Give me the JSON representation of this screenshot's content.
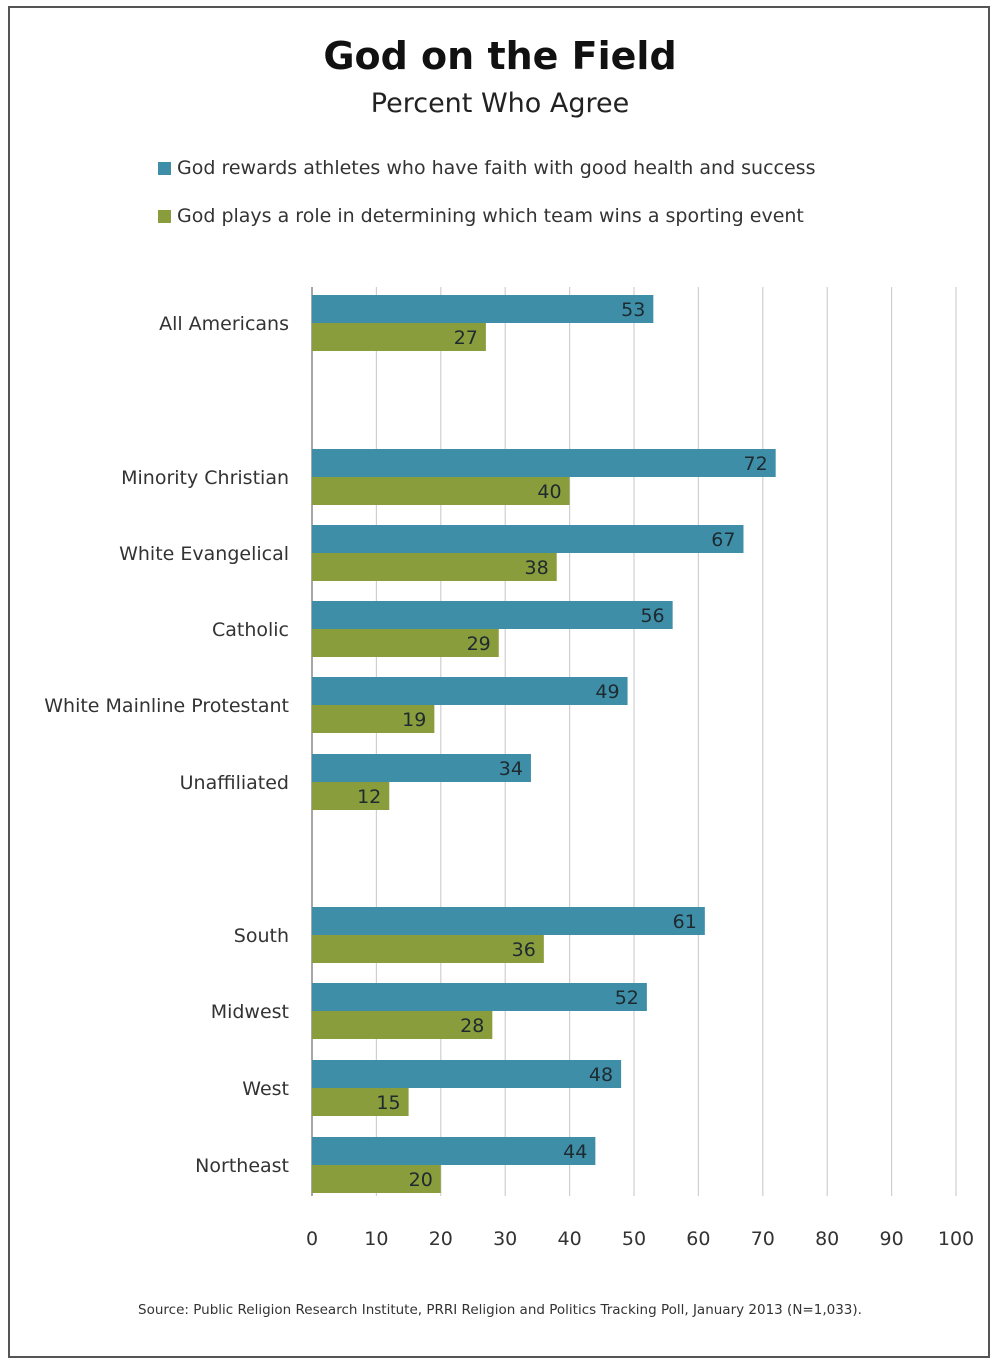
{
  "chart_data": {
    "type": "bar",
    "orientation": "horizontal",
    "title": "God on the Field",
    "subtitle": "Percent Who Agree",
    "categories": [
      "All Americans",
      "Minority Christian",
      "White Evangelical",
      "Catholic",
      "White Mainline Protestant",
      "Unaffiliated",
      "South",
      "Midwest",
      "West",
      "Northeast"
    ],
    "series": [
      {
        "name": "God rewards athletes who have faith with good health and success",
        "color": "#3f8ea8",
        "values": [
          53,
          72,
          67,
          56,
          49,
          34,
          61,
          52,
          48,
          44
        ]
      },
      {
        "name": "God plays a role in determining which team wins a sporting event",
        "color": "#8a9d3c",
        "values": [
          27,
          40,
          38,
          29,
          19,
          12,
          36,
          28,
          15,
          20
        ]
      }
    ],
    "xlim": [
      0,
      100
    ],
    "xticks": [
      0,
      10,
      20,
      30,
      40,
      50,
      60,
      70,
      80,
      90,
      100
    ],
    "grid": true,
    "legend_position": "top",
    "source": "Source: Public Religion Research Institute, PRRI Religion and Politics Tracking Poll, January 2013 (N=1,033)."
  }
}
